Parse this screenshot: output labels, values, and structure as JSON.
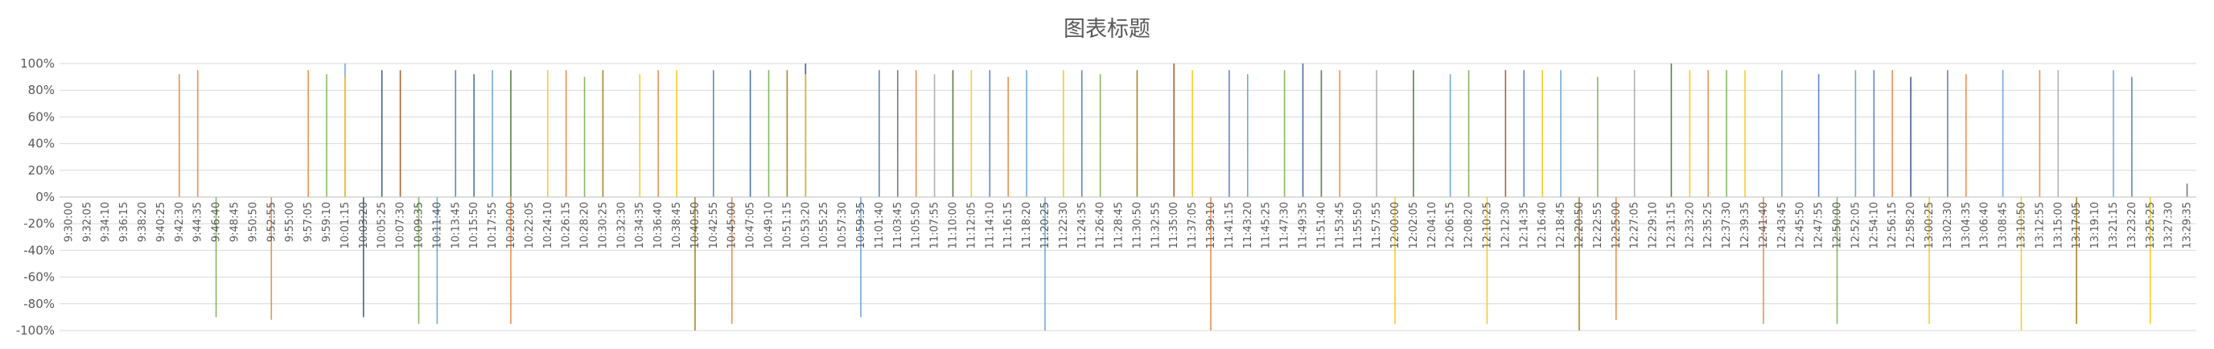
{
  "chart_data": {
    "type": "line",
    "title": "图表标题",
    "xlabel": "",
    "ylabel": "",
    "ylim": [
      -1.0,
      1.0
    ],
    "y_ticks": [
      "100%",
      "80%",
      "60%",
      "40%",
      "20%",
      "0%",
      "-20%",
      "-40%",
      "-60%",
      "-80%",
      "-100%"
    ],
    "categories": [
      "9:30:00",
      "9:32:05",
      "9:34:10",
      "9:36:15",
      "9:38:20",
      "9:40:25",
      "9:42:30",
      "9:44:35",
      "9:46:40",
      "9:48:45",
      "9:50:50",
      "9:52:55",
      "9:55:00",
      "9:57:05",
      "9:59:10",
      "10:01:15",
      "10:03:20",
      "10:05:25",
      "10:07:30",
      "10:09:35",
      "10:11:40",
      "10:13:45",
      "10:15:50",
      "10:17:55",
      "10:20:00",
      "10:22:05",
      "10:24:10",
      "10:26:15",
      "10:28:20",
      "10:30:25",
      "10:32:30",
      "10:34:35",
      "10:36:40",
      "10:38:45",
      "10:40:50",
      "10:42:55",
      "10:45:00",
      "10:47:05",
      "10:49:10",
      "10:51:15",
      "10:53:20",
      "10:55:25",
      "10:57:30",
      "10:59:35",
      "11:01:40",
      "11:03:45",
      "11:05:50",
      "11:07:55",
      "11:10:00",
      "11:12:05",
      "11:14:10",
      "11:16:15",
      "11:18:20",
      "11:20:25",
      "11:22:30",
      "11:24:35",
      "11:26:40",
      "11:28:45",
      "11:30:50",
      "11:32:55",
      "11:35:00",
      "11:37:05",
      "11:39:10",
      "11:41:15",
      "11:43:20",
      "11:45:25",
      "11:47:30",
      "11:49:35",
      "11:51:40",
      "11:53:45",
      "11:55:50",
      "11:57:55",
      "12:00:00",
      "12:02:05",
      "12:04:10",
      "12:06:15",
      "12:08:20",
      "12:10:25",
      "12:12:30",
      "12:14:35",
      "12:16:40",
      "12:18:45",
      "12:20:50",
      "12:22:55",
      "12:25:00",
      "12:27:05",
      "12:29:10",
      "12:31:15",
      "12:33:20",
      "12:35:25",
      "12:37:30",
      "12:39:35",
      "12:41:40",
      "12:43:45",
      "12:45:50",
      "12:47:55",
      "12:50:00",
      "12:52:05",
      "12:54:10",
      "12:56:15",
      "12:58:20",
      "13:00:25",
      "13:02:30",
      "13:04:35",
      "13:06:40",
      "13:08:45",
      "13:10:50",
      "13:12:55",
      "13:15:00",
      "13:17:05",
      "13:19:10",
      "13:21:15",
      "13:23:20",
      "13:25:25",
      "13:27:30",
      "13:29:35"
    ],
    "series_colors": [
      "#4472C4",
      "#ED7D31",
      "#A5A5A5",
      "#FFC000",
      "#5B9BD5",
      "#70AD47",
      "#264478",
      "#9E480E",
      "#636363",
      "#997300",
      "#255E91",
      "#43682B"
    ],
    "spikes": [
      {
        "x": "9:42:30",
        "value": 0.92,
        "series": 1
      },
      {
        "x": "9:44:35",
        "value": 0.95,
        "series": 1
      },
      {
        "x": "9:46:40",
        "value": -0.9,
        "series": 5
      },
      {
        "x": "9:52:55",
        "value": -0.92,
        "series": 1
      },
      {
        "x": "9:57:05",
        "value": 0.95,
        "series": 1
      },
      {
        "x": "9:59:10",
        "value": 0.92,
        "series": 5
      },
      {
        "x": "10:01:15",
        "value": 1.0,
        "series": 4
      },
      {
        "x": "10:01:15",
        "value": 0.9,
        "series": 3
      },
      {
        "x": "10:03:20",
        "value": -0.9,
        "series": 6
      },
      {
        "x": "10:05:25",
        "value": 0.95,
        "series": 6
      },
      {
        "x": "10:07:30",
        "value": 0.95,
        "series": 7
      },
      {
        "x": "10:09:35",
        "value": -0.95,
        "series": 5
      },
      {
        "x": "10:11:40",
        "value": -0.95,
        "series": 4
      },
      {
        "x": "10:13:45",
        "value": 0.95,
        "series": 0
      },
      {
        "x": "10:15:50",
        "value": 0.92,
        "series": 10
      },
      {
        "x": "10:17:55",
        "value": 0.95,
        "series": 4
      },
      {
        "x": "10:20:00",
        "value": 0.95,
        "series": 11
      },
      {
        "x": "10:20:00",
        "value": -0.95,
        "series": 1
      },
      {
        "x": "10:24:10",
        "value": 0.95,
        "series": 3
      },
      {
        "x": "10:26:15",
        "value": 0.95,
        "series": 1
      },
      {
        "x": "10:28:20",
        "value": 0.9,
        "series": 5
      },
      {
        "x": "10:30:25",
        "value": 0.95,
        "series": 9
      },
      {
        "x": "10:34:35",
        "value": 0.92,
        "series": 3
      },
      {
        "x": "10:36:40",
        "value": 0.95,
        "series": 1
      },
      {
        "x": "10:38:45",
        "value": 0.95,
        "series": 3
      },
      {
        "x": "10:40:50",
        "value": -1.0,
        "series": 9
      },
      {
        "x": "10:42:55",
        "value": 0.95,
        "series": 0
      },
      {
        "x": "10:45:00",
        "value": -0.95,
        "series": 1
      },
      {
        "x": "10:47:05",
        "value": 0.95,
        "series": 10
      },
      {
        "x": "10:49:10",
        "value": 0.95,
        "series": 5
      },
      {
        "x": "10:51:15",
        "value": 0.95,
        "series": 9
      },
      {
        "x": "10:53:20",
        "value": 1.0,
        "series": 6
      },
      {
        "x": "10:53:20",
        "value": 0.92,
        "series": 3
      },
      {
        "x": "10:59:35",
        "value": -0.9,
        "series": 4
      },
      {
        "x": "11:01:40",
        "value": 0.95,
        "series": 0
      },
      {
        "x": "11:03:45",
        "value": 0.95,
        "series": 8
      },
      {
        "x": "11:05:50",
        "value": 0.95,
        "series": 1
      },
      {
        "x": "11:07:55",
        "value": 0.92,
        "series": 2
      },
      {
        "x": "11:10:00",
        "value": 0.95,
        "series": 11
      },
      {
        "x": "11:12:05",
        "value": 0.95,
        "series": 3
      },
      {
        "x": "11:14:10",
        "value": 0.95,
        "series": 0
      },
      {
        "x": "11:16:15",
        "value": 0.9,
        "series": 1
      },
      {
        "x": "11:18:20",
        "value": 0.95,
        "series": 4
      },
      {
        "x": "11:20:25",
        "value": -1.0,
        "series": 4
      },
      {
        "x": "11:22:30",
        "value": 0.95,
        "series": 3
      },
      {
        "x": "11:24:35",
        "value": 0.95,
        "series": 0
      },
      {
        "x": "11:26:40",
        "value": 0.92,
        "series": 5
      },
      {
        "x": "11:30:50",
        "value": 0.95,
        "series": 9
      },
      {
        "x": "11:35:00",
        "value": 1.0,
        "series": 7
      },
      {
        "x": "11:37:05",
        "value": 0.95,
        "series": 3
      },
      {
        "x": "11:39:10",
        "value": -1.0,
        "series": 1
      },
      {
        "x": "11:41:15",
        "value": 0.95,
        "series": 0
      },
      {
        "x": "11:43:20",
        "value": 0.92,
        "series": 4
      },
      {
        "x": "11:47:30",
        "value": 0.95,
        "series": 5
      },
      {
        "x": "11:49:35",
        "value": 1.0,
        "series": 10
      },
      {
        "x": "11:51:40",
        "value": 0.95,
        "series": 11
      },
      {
        "x": "11:53:45",
        "value": 0.95,
        "series": 1
      },
      {
        "x": "11:57:55",
        "value": 0.95,
        "series": 2
      },
      {
        "x": "12:00:00",
        "value": -0.95,
        "series": 3
      },
      {
        "x": "12:02:05",
        "value": 0.95,
        "series": 11
      },
      {
        "x": "12:06:15",
        "value": 0.92,
        "series": 4
      },
      {
        "x": "12:08:20",
        "value": 0.95,
        "series": 5
      },
      {
        "x": "12:10:25",
        "value": -0.95,
        "series": 3
      },
      {
        "x": "12:12:30",
        "value": 0.95,
        "series": 7
      },
      {
        "x": "12:14:35",
        "value": 0.95,
        "series": 0
      },
      {
        "x": "12:16:40",
        "value": 0.95,
        "series": 3
      },
      {
        "x": "12:18:45",
        "value": 0.95,
        "series": 4
      },
      {
        "x": "12:20:50",
        "value": -1.0,
        "series": 9
      },
      {
        "x": "12:22:55",
        "value": 0.9,
        "series": 5
      },
      {
        "x": "12:25:00",
        "value": -0.92,
        "series": 1
      },
      {
        "x": "12:27:05",
        "value": 0.95,
        "series": 2
      },
      {
        "x": "12:31:15",
        "value": 1.0,
        "series": 11
      },
      {
        "x": "12:33:20",
        "value": 0.95,
        "series": 3
      },
      {
        "x": "12:35:25",
        "value": 0.95,
        "series": 1
      },
      {
        "x": "12:37:30",
        "value": 0.95,
        "series": 5
      },
      {
        "x": "12:39:35",
        "value": 0.95,
        "series": 3
      },
      {
        "x": "12:41:40",
        "value": -0.95,
        "series": 1
      },
      {
        "x": "12:43:45",
        "value": 0.95,
        "series": 4
      },
      {
        "x": "12:47:55",
        "value": 0.92,
        "series": 0
      },
      {
        "x": "12:50:00",
        "value": -0.95,
        "series": 5
      },
      {
        "x": "12:52:05",
        "value": 0.95,
        "series": 4
      },
      {
        "x": "12:54:10",
        "value": 0.95,
        "series": 0
      },
      {
        "x": "12:56:15",
        "value": 0.95,
        "series": 1
      },
      {
        "x": "12:58:20",
        "value": 0.9,
        "series": 6
      },
      {
        "x": "13:00:25",
        "value": -0.95,
        "series": 3
      },
      {
        "x": "13:02:30",
        "value": 0.95,
        "series": 0
      },
      {
        "x": "13:04:35",
        "value": 0.92,
        "series": 1
      },
      {
        "x": "13:08:45",
        "value": 0.95,
        "series": 4
      },
      {
        "x": "13:10:50",
        "value": -1.0,
        "series": 3
      },
      {
        "x": "13:12:55",
        "value": 0.95,
        "series": 1
      },
      {
        "x": "13:15:00",
        "value": 0.95,
        "series": 2
      },
      {
        "x": "13:17:05",
        "value": -0.95,
        "series": 9
      },
      {
        "x": "13:21:15",
        "value": 0.95,
        "series": 4
      },
      {
        "x": "13:23:20",
        "value": 0.9,
        "series": 0
      },
      {
        "x": "13:25:25",
        "value": -0.95,
        "series": 3
      },
      {
        "x": "13:29:35",
        "value": 0.1,
        "series": 8
      }
    ],
    "grid": true,
    "legend": "none"
  }
}
